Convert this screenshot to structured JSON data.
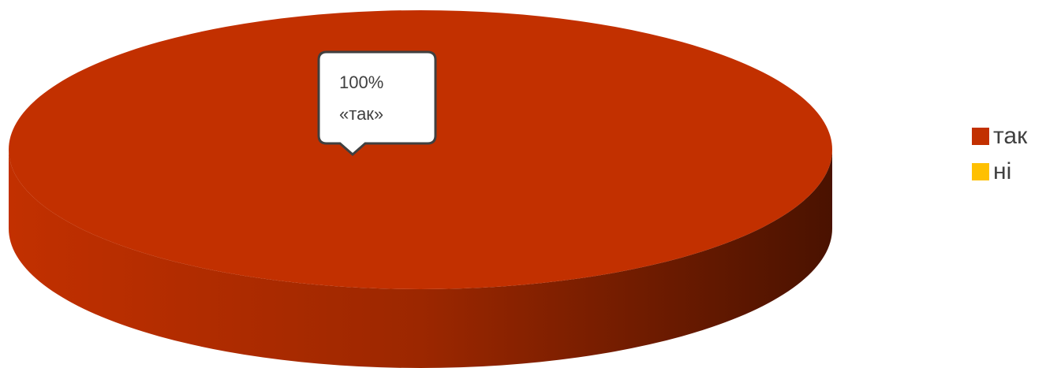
{
  "chart_data": {
    "type": "pie",
    "style": "3d",
    "categories": [
      "так",
      "ні"
    ],
    "values": [
      100,
      0
    ],
    "colors": [
      "#C23000",
      "#FFC000"
    ],
    "data_labels": [
      {
        "category": "так",
        "lines": [
          "100%",
          "«так»"
        ]
      }
    ],
    "legend": {
      "position": "right"
    }
  }
}
